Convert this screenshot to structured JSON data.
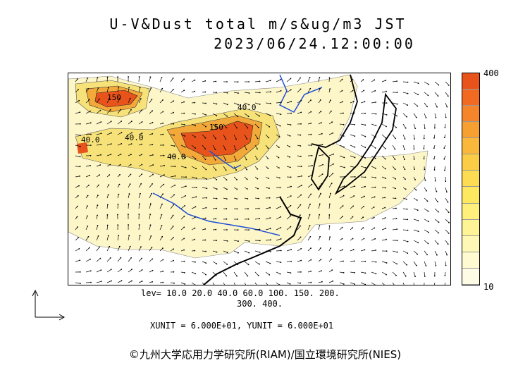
{
  "header": {
    "title_line1": "U-V&Dust total m/s&ug/m3 JST",
    "title_line2": "2023/06/24.12:00:00"
  },
  "map": {
    "contour_labels": [
      "150",
      "150",
      "40.0",
      "40.0",
      "40.0",
      "40.0"
    ],
    "colors": {
      "ocean": "#ffffff",
      "land_dust_low": "#fdf6c8",
      "dust_mid": "#f7e27a",
      "dust_high": "#f2a93a",
      "dust_peak": "#e8531c",
      "river": "#1e4fd6",
      "coast": "#000000"
    }
  },
  "colorbar": {
    "max_label": "400",
    "min_label": "10",
    "colors": [
      "#e8531c",
      "#f06a22",
      "#f5852a",
      "#f7a032",
      "#f9b83c",
      "#fbcc46",
      "#fcdc52",
      "#fde860",
      "#fef07a",
      "#fef496",
      "#fff8b4",
      "#fffad0",
      "#fffce6"
    ]
  },
  "legend": {
    "levels_line1": "lev= 10.0 20.0 40.0 60.0 100. 150. 200.",
    "levels_line2": "300. 400.",
    "unit_line": "XUNIT = 6.000E+01, YUNIT = 6.000E+01"
  },
  "footer": {
    "copyright": "©九州大学応用力学研究所(RIAM)/国立環境研究所(NIES)"
  }
}
